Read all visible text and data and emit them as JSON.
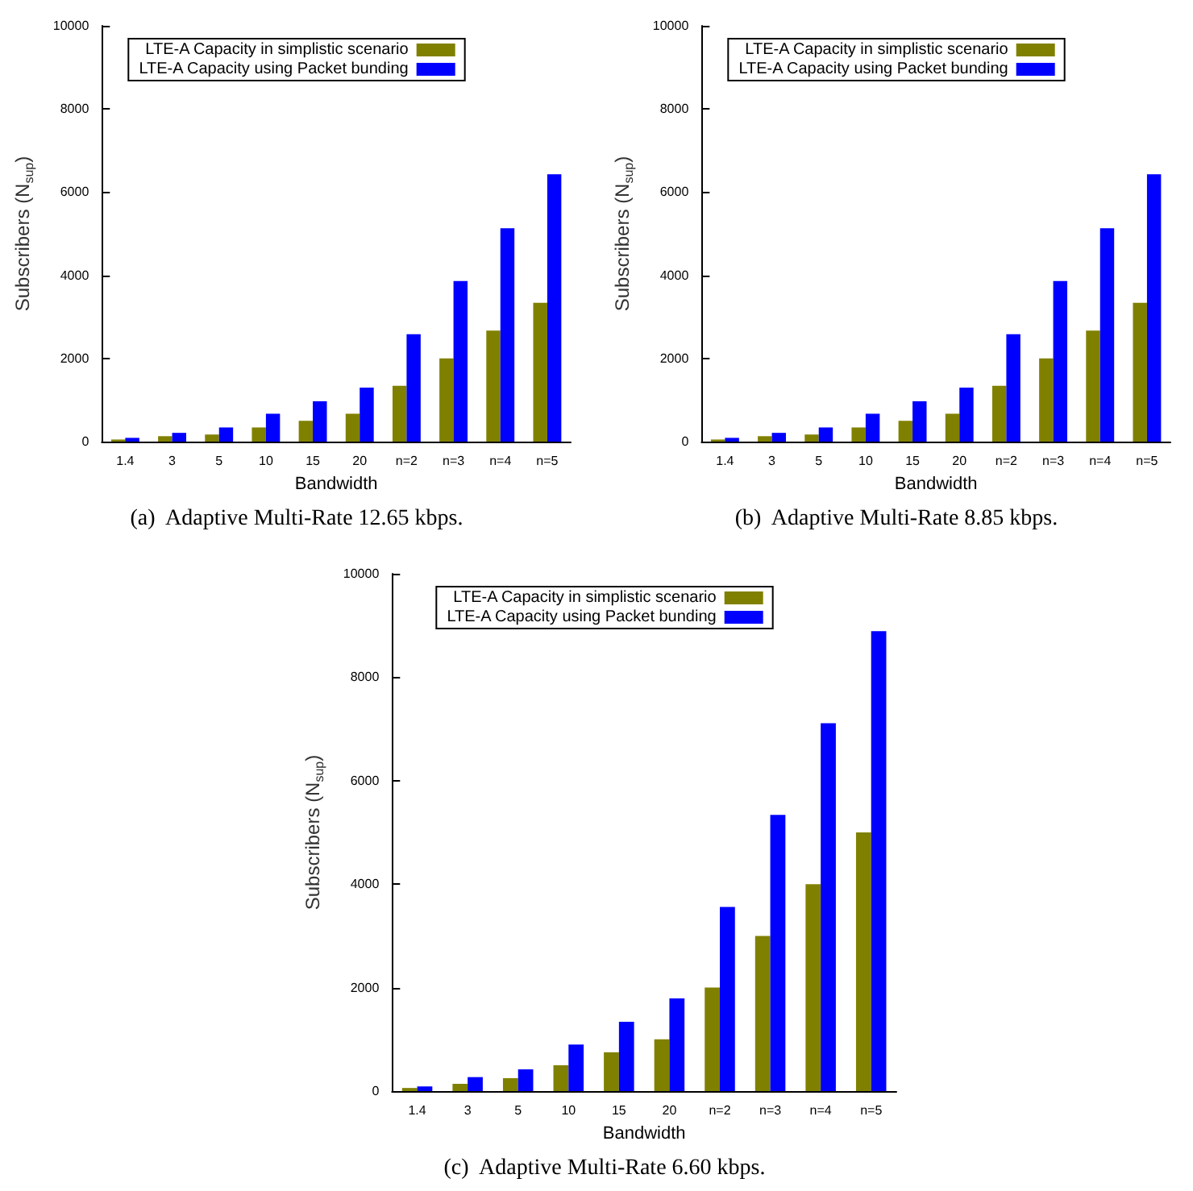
{
  "chart_data": [
    {
      "type": "bar",
      "title": "(a)  Adaptive Multi-Rate 12.65 kbps.",
      "xlabel": "Bandwidth",
      "ylabel": "Subscribers (N$_{sup}$)",
      "categories": [
        "1.4",
        "3",
        "5",
        "10",
        "15",
        "20",
        "n=2",
        "n=3",
        "n=4",
        "n=5"
      ],
      "series": [
        {
          "name": "LTE-A Capacity in simplistic scenario",
          "color": "#808000",
          "values": [
            50,
            130,
            170,
            340,
            500,
            670,
            1340,
            2000,
            2670,
            3340
          ]
        },
        {
          "name": "LTE-A Capacity using Packet bunding",
          "color": "#0000ff",
          "values": [
            90,
            210,
            340,
            670,
            970,
            1300,
            2580,
            3860,
            5130,
            6430
          ]
        }
      ],
      "ylim": [
        0,
        10000
      ],
      "yticks": [
        0,
        2000,
        4000,
        6000,
        8000,
        10000
      ],
      "legend": "top"
    },
    {
      "type": "bar",
      "title": "(b)  Adaptive Multi-Rate 8.85 kbps.",
      "xlabel": "Bandwidth",
      "ylabel": "Subscribers (N$_{sup}$)",
      "categories": [
        "1.4",
        "3",
        "5",
        "10",
        "15",
        "20",
        "n=2",
        "n=3",
        "n=4",
        "n=5"
      ],
      "series": [
        {
          "name": "LTE-A Capacity in simplistic scenario",
          "color": "#808000",
          "values": [
            50,
            130,
            170,
            340,
            500,
            670,
            1340,
            2000,
            2670,
            3340
          ]
        },
        {
          "name": "LTE-A Capacity using Packet bunding",
          "color": "#0000ff",
          "values": [
            90,
            210,
            340,
            670,
            970,
            1300,
            2580,
            3860,
            5130,
            6430
          ]
        }
      ],
      "ylim": [
        0,
        10000
      ],
      "yticks": [
        0,
        2000,
        4000,
        6000,
        8000,
        10000
      ],
      "legend": "top"
    },
    {
      "type": "bar",
      "title": "(c)  Adaptive Multi-Rate 6.60 kbps.",
      "xlabel": "Bandwidth",
      "ylabel": "Subscribers (N$_{sup}$)",
      "categories": [
        "1.4",
        "3",
        "5",
        "10",
        "15",
        "20",
        "n=2",
        "n=3",
        "n=4",
        "n=5"
      ],
      "series": [
        {
          "name": "LTE-A Capacity in simplistic scenario",
          "color": "#808000",
          "values": [
            60,
            140,
            250,
            500,
            750,
            1000,
            2000,
            3000,
            4000,
            5000
          ]
        },
        {
          "name": "LTE-A Capacity using Packet bunding",
          "color": "#0000ff",
          "values": [
            90,
            270,
            420,
            900,
            1340,
            1790,
            3560,
            5340,
            7110,
            8890
          ]
        }
      ],
      "ylim": [
        0,
        10000
      ],
      "yticks": [
        0,
        2000,
        4000,
        6000,
        8000,
        10000
      ],
      "legend": "top"
    }
  ]
}
